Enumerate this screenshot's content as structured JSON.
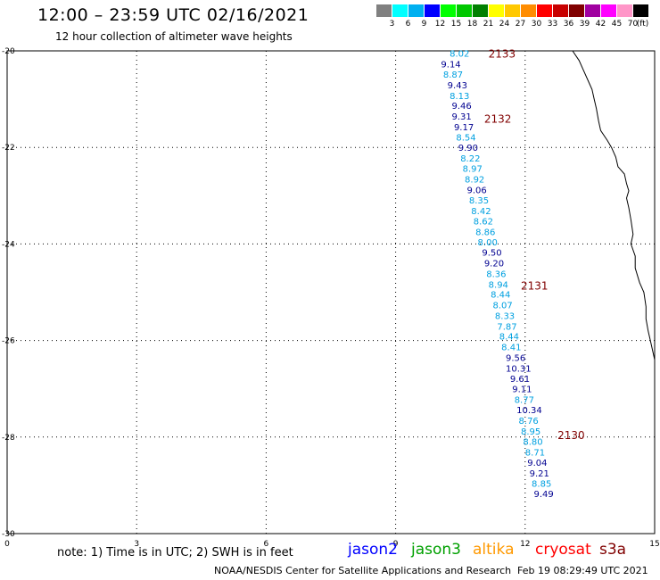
{
  "header": {
    "title": "12:00 – 23:59 UTC 02/16/2021",
    "subtitle": "12 hour collection of altimeter wave heights"
  },
  "legend": {
    "unit": "(ft)",
    "bins": [
      {
        "label": "3",
        "color": "#808080"
      },
      {
        "label": "6",
        "color": "#00ffff"
      },
      {
        "label": "9",
        "color": "#00b0f0"
      },
      {
        "label": "12",
        "color": "#0000ff"
      },
      {
        "label": "15",
        "color": "#00ff00"
      },
      {
        "label": "18",
        "color": "#00c800"
      },
      {
        "label": "21",
        "color": "#008000"
      },
      {
        "label": "24",
        "color": "#ffff00"
      },
      {
        "label": "27",
        "color": "#ffc800"
      },
      {
        "label": "30",
        "color": "#ff8c00"
      },
      {
        "label": "33",
        "color": "#ff0000"
      },
      {
        "label": "36",
        "color": "#c80000"
      },
      {
        "label": "39",
        "color": "#800000"
      },
      {
        "label": "42",
        "color": "#a000a0"
      },
      {
        "label": "45",
        "color": "#ff00ff"
      },
      {
        "label": "70",
        "color": "#ff96c8"
      },
      {
        "label": "",
        "color": "#000000"
      }
    ]
  },
  "axes": {
    "x_ticks": [
      "0",
      "3",
      "6",
      "9",
      "12",
      "15"
    ],
    "y_ticks": [
      "-20",
      "-22",
      "-24",
      "-26",
      "-28",
      "-30"
    ],
    "x_range": [
      0,
      15
    ],
    "y_range": [
      -30,
      -20
    ]
  },
  "track": {
    "color_light": "#00a0e0",
    "color_dark": "#000090",
    "points": [
      {
        "lon": 10.25,
        "lat": -20.05,
        "value": "8.02",
        "tone": "light"
      },
      {
        "lon": 10.05,
        "lat": -20.27,
        "value": "9.14",
        "tone": "dark"
      },
      {
        "lon": 10.1,
        "lat": -20.48,
        "value": "8.87",
        "tone": "light"
      },
      {
        "lon": 10.2,
        "lat": -20.7,
        "value": "9.43",
        "tone": "dark"
      },
      {
        "lon": 10.25,
        "lat": -20.92,
        "value": "8.13",
        "tone": "light"
      },
      {
        "lon": 10.3,
        "lat": -21.13,
        "value": "9.46",
        "tone": "dark"
      },
      {
        "lon": 10.3,
        "lat": -21.35,
        "value": "9.31",
        "tone": "dark"
      },
      {
        "lon": 10.35,
        "lat": -21.57,
        "value": "9.17",
        "tone": "dark"
      },
      {
        "lon": 10.4,
        "lat": -21.78,
        "value": "8.54",
        "tone": "light"
      },
      {
        "lon": 10.45,
        "lat": -22.0,
        "value": "9.90",
        "tone": "dark"
      },
      {
        "lon": 10.5,
        "lat": -22.22,
        "value": "8.22",
        "tone": "light"
      },
      {
        "lon": 10.55,
        "lat": -22.43,
        "value": "8.97",
        "tone": "light"
      },
      {
        "lon": 10.6,
        "lat": -22.65,
        "value": "8.92",
        "tone": "light"
      },
      {
        "lon": 10.65,
        "lat": -22.87,
        "value": "9.06",
        "tone": "dark"
      },
      {
        "lon": 10.7,
        "lat": -23.09,
        "value": "8.35",
        "tone": "light"
      },
      {
        "lon": 10.75,
        "lat": -23.31,
        "value": "8.42",
        "tone": "light"
      },
      {
        "lon": 10.8,
        "lat": -23.52,
        "value": "8.62",
        "tone": "light"
      },
      {
        "lon": 10.85,
        "lat": -23.74,
        "value": "8.86",
        "tone": "light"
      },
      {
        "lon": 10.9,
        "lat": -23.96,
        "value": "8.00",
        "tone": "light"
      },
      {
        "lon": 11.0,
        "lat": -24.17,
        "value": "9.50",
        "tone": "dark"
      },
      {
        "lon": 11.05,
        "lat": -24.39,
        "value": "9.20",
        "tone": "dark"
      },
      {
        "lon": 11.1,
        "lat": -24.61,
        "value": "8.36",
        "tone": "light"
      },
      {
        "lon": 11.15,
        "lat": -24.83,
        "value": "8.94",
        "tone": "light"
      },
      {
        "lon": 11.2,
        "lat": -25.04,
        "value": "8.44",
        "tone": "light"
      },
      {
        "lon": 11.25,
        "lat": -25.26,
        "value": "8.07",
        "tone": "light"
      },
      {
        "lon": 11.3,
        "lat": -25.48,
        "value": "8.33",
        "tone": "light"
      },
      {
        "lon": 11.35,
        "lat": -25.7,
        "value": "7.87",
        "tone": "light"
      },
      {
        "lon": 11.4,
        "lat": -25.91,
        "value": "8.44",
        "tone": "light"
      },
      {
        "lon": 11.45,
        "lat": -26.13,
        "value": "8.41",
        "tone": "light"
      },
      {
        "lon": 11.55,
        "lat": -26.35,
        "value": "9.56",
        "tone": "dark"
      },
      {
        "lon": 11.55,
        "lat": -26.57,
        "value": "10.31",
        "tone": "dark"
      },
      {
        "lon": 11.65,
        "lat": -26.78,
        "value": "9.61",
        "tone": "dark"
      },
      {
        "lon": 11.7,
        "lat": -27.0,
        "value": "9.11",
        "tone": "dark"
      },
      {
        "lon": 11.75,
        "lat": -27.22,
        "value": "8.77",
        "tone": "light"
      },
      {
        "lon": 11.8,
        "lat": -27.43,
        "value": "10.34",
        "tone": "dark"
      },
      {
        "lon": 11.85,
        "lat": -27.65,
        "value": "8.76",
        "tone": "light"
      },
      {
        "lon": 11.9,
        "lat": -27.87,
        "value": "8.95",
        "tone": "light"
      },
      {
        "lon": 11.95,
        "lat": -28.09,
        "value": "8.80",
        "tone": "light"
      },
      {
        "lon": 12.0,
        "lat": -28.31,
        "value": "8.71",
        "tone": "light"
      },
      {
        "lon": 12.05,
        "lat": -28.52,
        "value": "9.04",
        "tone": "dark"
      },
      {
        "lon": 12.1,
        "lat": -28.74,
        "value": "9.21",
        "tone": "dark"
      },
      {
        "lon": 12.15,
        "lat": -28.96,
        "value": "8.85",
        "tone": "light"
      },
      {
        "lon": 12.2,
        "lat": -29.17,
        "value": "9.49",
        "tone": "dark"
      }
    ],
    "time_labels": [
      {
        "text": "2133",
        "lon": 11.15,
        "lat": -20.05
      },
      {
        "text": "2132",
        "lon": 11.05,
        "lat": -21.4
      },
      {
        "text": "2131",
        "lon": 11.9,
        "lat": -24.85
      },
      {
        "text": "2130",
        "lon": 12.75,
        "lat": -27.95
      }
    ],
    "time_label_color": "#800000"
  },
  "coastline": [
    [
      13.1,
      -20.0
    ],
    [
      13.25,
      -20.2
    ],
    [
      13.35,
      -20.4
    ],
    [
      13.45,
      -20.6
    ],
    [
      13.55,
      -20.8
    ],
    [
      13.6,
      -21.0
    ],
    [
      13.65,
      -21.2
    ],
    [
      13.7,
      -21.45
    ],
    [
      13.75,
      -21.65
    ],
    [
      13.9,
      -21.85
    ],
    [
      14.0,
      -22.0
    ],
    [
      14.1,
      -22.2
    ],
    [
      14.15,
      -22.4
    ],
    [
      14.3,
      -22.55
    ],
    [
      14.35,
      -22.75
    ],
    [
      14.4,
      -22.9
    ],
    [
      14.35,
      -23.05
    ],
    [
      14.4,
      -23.25
    ],
    [
      14.45,
      -23.5
    ],
    [
      14.5,
      -23.8
    ],
    [
      14.45,
      -24.0
    ],
    [
      14.55,
      -24.25
    ],
    [
      14.55,
      -24.5
    ],
    [
      14.65,
      -24.8
    ],
    [
      14.75,
      -25.0
    ],
    [
      14.8,
      -25.3
    ],
    [
      14.8,
      -25.55
    ],
    [
      14.85,
      -25.8
    ],
    [
      14.9,
      -26.0
    ],
    [
      14.95,
      -26.2
    ],
    [
      15.0,
      -26.4
    ]
  ],
  "footer": {
    "note": "note: 1) Time is in UTC; 2) SWH is in feet",
    "satellites": [
      {
        "name": "jason2",
        "color": "#0000ff"
      },
      {
        "name": "jason3",
        "color": "#00a000"
      },
      {
        "name": "altika",
        "color": "#ff9900"
      },
      {
        "name": "cryosat",
        "color": "#ff0000"
      },
      {
        "name": "s3a",
        "color": "#800000"
      }
    ],
    "credit": "NOAA/NESDIS Center for Satellite Applications and Research",
    "timestamp": "Feb 19 08:29:49 UTC 2021"
  }
}
